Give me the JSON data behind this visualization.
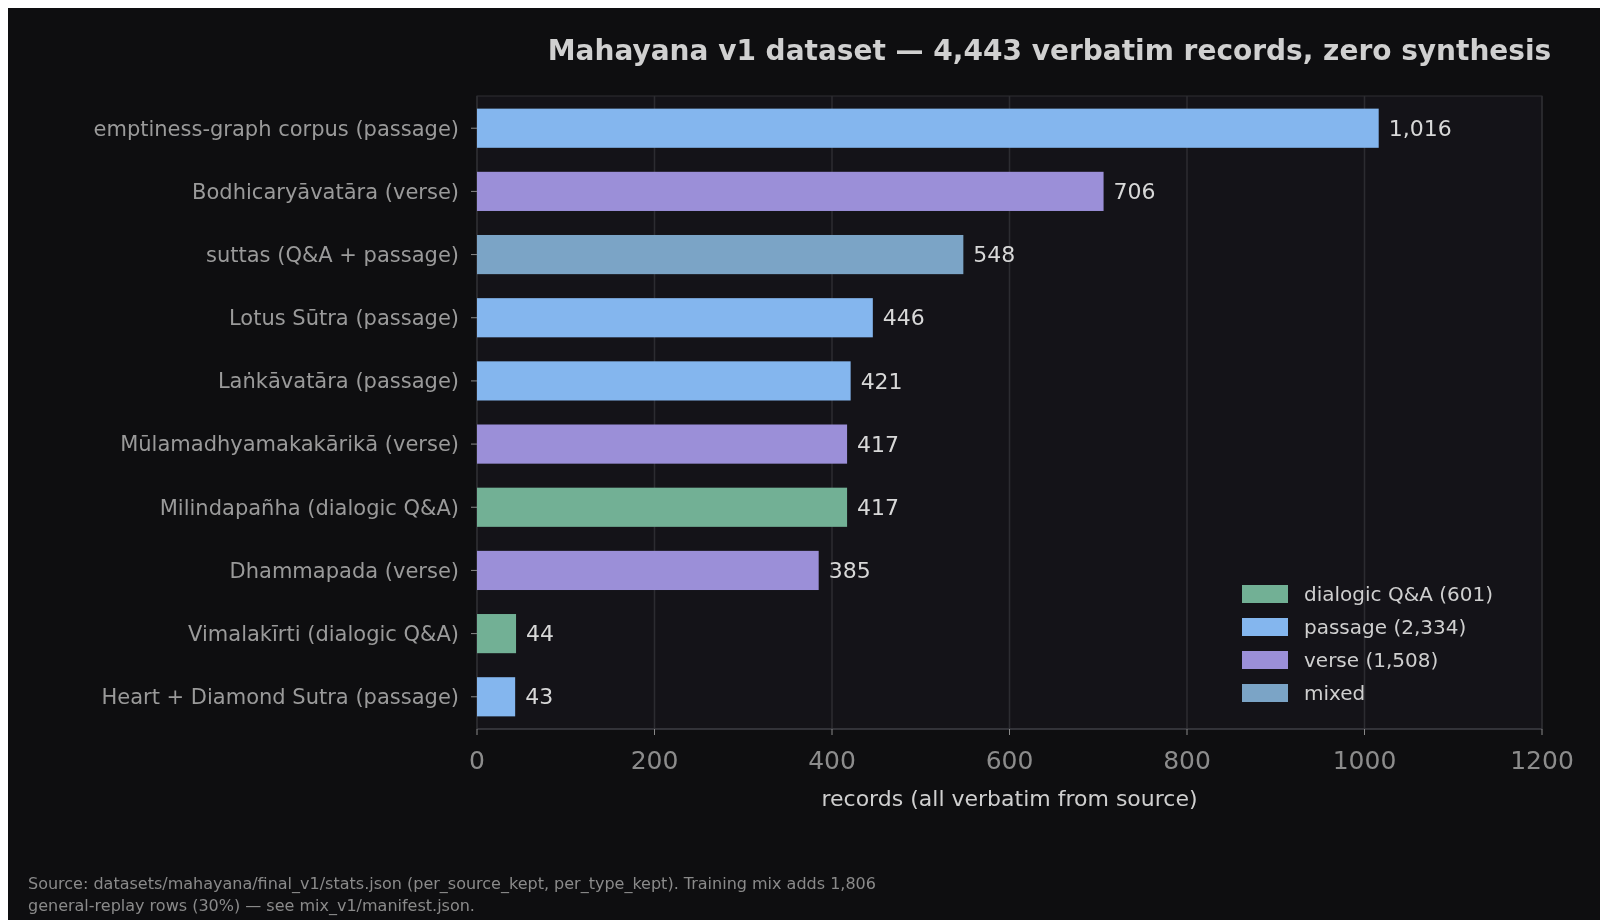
{
  "chart_data": {
    "type": "bar",
    "orientation": "horizontal",
    "stacked": true,
    "title": "Mahayana v1 dataset — 4,443 verbatim records, zero synthesis",
    "xlabel": "records (all verbatim from source)",
    "categories": [
      "emptiness-graph corpus (passage)",
      "Bodhicaryāvatāra (verse)",
      "suttas (Q&A + passage)",
      "Lotus Sūtra (passage)",
      "Laṅkāvatāra (passage)",
      "Mūlamadhyamakakārikā (verse)",
      "Milindapañha (dialogic Q&A)",
      "Dhammapada (verse)",
      "Vimalakīrti (dialogic Q&A)",
      "Heart + Diamond Sutra (passage)"
    ],
    "series": [
      {
        "name": "dialogic Q&A (601)",
        "color": "#72b095",
        "values": [
          null,
          null,
          null,
          null,
          null,
          null,
          417,
          null,
          44,
          null
        ],
        "value_labels": [
          null,
          null,
          null,
          null,
          null,
          null,
          "417",
          null,
          "44",
          null
        ]
      },
      {
        "name": "passage (2,334)",
        "color": "#84b6ee",
        "values": [
          1016,
          null,
          null,
          446,
          421,
          null,
          null,
          null,
          null,
          43
        ],
        "value_labels": [
          "1,016",
          null,
          null,
          "446",
          "421",
          null,
          null,
          null,
          null,
          "43"
        ]
      },
      {
        "name": "verse (1,508)",
        "color": "#9b8fd8",
        "values": [
          null,
          706,
          null,
          null,
          null,
          417,
          null,
          385,
          null,
          null
        ],
        "value_labels": [
          null,
          "706",
          null,
          null,
          null,
          "417",
          null,
          "385",
          null,
          null
        ]
      },
      {
        "name": "mixed",
        "color": "#7ba4c6",
        "values": [
          null,
          null,
          548,
          null,
          null,
          null,
          null,
          null,
          null,
          null
        ],
        "value_labels": [
          null,
          null,
          "548",
          null,
          null,
          null,
          null,
          null,
          null,
          null
        ]
      }
    ],
    "xlim": [
      0,
      1200
    ],
    "xticks": [
      0,
      200,
      400,
      600,
      800,
      1000,
      1200
    ],
    "grid": "x",
    "legend": "bottom right",
    "annotations": [
      "Source: datasets/mahayana/final_v1/stats.json (per_source_kept, per_type_kept). Training mix adds 1,806",
      "general-replay rows (30%) — see mix_v1/manifest.json."
    ]
  }
}
